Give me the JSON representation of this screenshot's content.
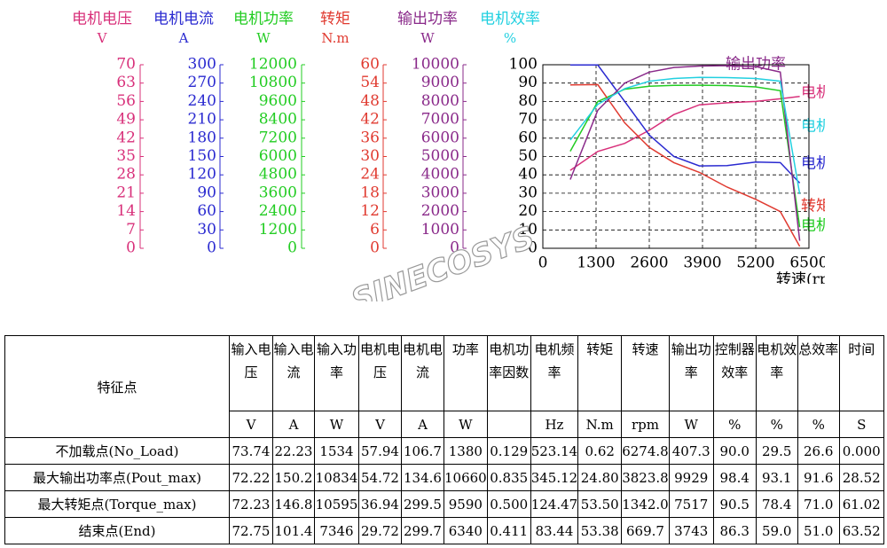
{
  "chart_data": {
    "type": "line",
    "x": [
      669.7,
      1342.0,
      2000,
      2600,
      3200,
      3823.8,
      4500,
      5200,
      5800,
      6274.8
    ],
    "xlim": [
      0,
      6500
    ],
    "xticks": [
      0,
      1300,
      2600,
      3900,
      5200,
      6500
    ],
    "xlabel": "转速(rpm)",
    "grid": true,
    "axes": [
      {
        "unit": "V",
        "ylim": [
          0,
          70
        ],
        "yticks": [
          0,
          7,
          14,
          21,
          28,
          35,
          42,
          49,
          56,
          63,
          70
        ]
      },
      {
        "unit": "A",
        "ylim": [
          0,
          300
        ],
        "yticks": [
          0,
          30,
          60,
          90,
          120,
          150,
          180,
          210,
          240,
          270,
          300
        ]
      },
      {
        "unit": "W",
        "ylim": [
          0,
          12000
        ],
        "yticks": [
          0,
          1200,
          2400,
          3600,
          4800,
          6000,
          7200,
          8400,
          9600,
          10800,
          12000
        ]
      },
      {
        "unit": "N.m",
        "ylim": [
          0,
          60
        ],
        "yticks": [
          0,
          6,
          12,
          18,
          24,
          30,
          36,
          42,
          48,
          54,
          60
        ]
      },
      {
        "unit": "W",
        "ylim": [
          0,
          10000
        ],
        "yticks": [
          0,
          1000,
          2000,
          3000,
          4000,
          5000,
          6000,
          7000,
          8000,
          9000,
          10000
        ]
      },
      {
        "unit": "%",
        "ylim": [
          0,
          100
        ],
        "yticks": [
          0,
          10,
          20,
          30,
          40,
          50,
          60,
          70,
          80,
          90,
          100
        ],
        "plot_axis": true
      }
    ],
    "series": [
      {
        "name": "电机电压",
        "color": "#d8307a",
        "axis": 0,
        "values": [
          29.72,
          36.94,
          40,
          45,
          51,
          54.72,
          55.5,
          56,
          57,
          57.94
        ]
      },
      {
        "name": "电机电流",
        "color": "#2a2ad0",
        "axis": 1,
        "values": [
          299.7,
          299.5,
          240,
          185,
          150,
          134.6,
          135,
          141,
          140,
          106.7
        ]
      },
      {
        "name": "电机功率",
        "color": "#22cc22",
        "axis": 2,
        "values": [
          6340,
          9590,
          10400,
          10600,
          10650,
          10660,
          10640,
          10550,
          10300,
          1380
        ]
      },
      {
        "name": "转矩",
        "color": "#e03a30",
        "axis": 3,
        "values": [
          53.38,
          53.5,
          41,
          33,
          28,
          24.8,
          20,
          16,
          12,
          0.62
        ]
      },
      {
        "name": "输出功率",
        "color": "#8a2a8a",
        "axis": 4,
        "values": [
          3743,
          7517,
          9000,
          9600,
          9850,
          9929,
          9950,
          9900,
          9600,
          407.3
        ]
      },
      {
        "name": "电机效率",
        "color": "#22d0e0",
        "axis": 5,
        "values": [
          59.0,
          78.4,
          87,
          91,
          92.5,
          93.1,
          93,
          92.5,
          91,
          29.5
        ]
      }
    ],
    "watermark": "SINECOSYS"
  },
  "table": {
    "corner": "特征点",
    "columns": [
      "输入电压",
      "输入电流",
      "输入功率",
      "电机电压",
      "电机电流",
      "功率",
      "电机功率因数",
      "电机频率",
      "转矩",
      "转速",
      "输出功率",
      "控制器效率",
      "电机效率",
      "总效率",
      "时间"
    ],
    "units": [
      "V",
      "A",
      "W",
      "V",
      "A",
      "W",
      null,
      "Hz",
      "N.m",
      "rpm",
      "W",
      "%",
      "%",
      "%",
      "S"
    ],
    "rows": [
      [
        "不加载点(No_Load)",
        "73.74",
        "22.23",
        "1534",
        "57.94",
        "106.7",
        "1380",
        "0.129",
        "523.14",
        "0.62",
        "6274.8",
        "407.3",
        "90.0",
        "29.5",
        "26.6",
        "0.000"
      ],
      [
        "最大输出功率点(Pout_max)",
        "72.22",
        "150.2",
        "10834",
        "54.72",
        "134.6",
        "10660",
        "0.835",
        "345.12",
        "24.80",
        "3823.8",
        "9929",
        "98.4",
        "93.1",
        "91.6",
        "28.52"
      ],
      [
        "最大转矩点(Torque_max)",
        "72.23",
        "146.8",
        "10595",
        "36.94",
        "299.5",
        "9590",
        "0.500",
        "124.47",
        "53.50",
        "1342.0",
        "7517",
        "90.5",
        "78.4",
        "71.0",
        "61.02"
      ],
      [
        "结束点(End)",
        "72.75",
        "101.4",
        "7346",
        "29.72",
        "299.7",
        "6340",
        "0.411",
        "83.44",
        "53.38",
        "669.7",
        "3743",
        "86.3",
        "59.0",
        "51.0",
        "63.52"
      ]
    ]
  }
}
